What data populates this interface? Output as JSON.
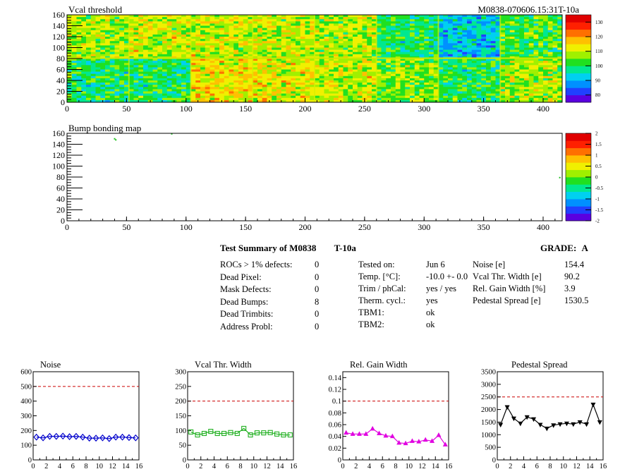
{
  "page": {
    "map1_title": "Vcal threshold",
    "map1_id": "M0838-070606.15:31T-10a",
    "map2_title": "Bump bonding map"
  },
  "summary": {
    "title": "Test Summary of M0838",
    "tag": "T-10a",
    "grade_label": "GRADE:",
    "grade_value": "A",
    "defects": [
      {
        "label": "ROCs > 1% defects:",
        "value": "0"
      },
      {
        "label": "Dead Pixel:",
        "value": "0"
      },
      {
        "label": "Mask Defects:",
        "value": "0"
      },
      {
        "label": "Dead Bumps:",
        "value": "8"
      },
      {
        "label": "Dead Trimbits:",
        "value": "0"
      },
      {
        "label": "Address Probl:",
        "value": "0"
      }
    ],
    "conditions": [
      {
        "label": "Tested on:",
        "value": "Jun 6"
      },
      {
        "label": "Temp. [°C]:",
        "value": "-10.0 +- 0.0"
      },
      {
        "label": "Trim / phCal:",
        "value": "yes / yes"
      },
      {
        "label": "Therm. cycl.:",
        "value": "yes"
      },
      {
        "label": "TBM1:",
        "value": "ok"
      },
      {
        "label": "TBM2:",
        "value": "ok"
      }
    ],
    "stats": [
      {
        "label": "Noise [e]",
        "value": "154.4"
      },
      {
        "label": "Vcal Thr. Width [e]",
        "value": "90.2"
      },
      {
        "label": "Rel. Gain Width [%]",
        "value": "3.9"
      },
      {
        "label": "Pedestal Spread [e]",
        "value": "1530.5"
      }
    ]
  },
  "chart_data": [
    {
      "type": "heatmap",
      "title": "Vcal threshold",
      "xlim": [
        0,
        416
      ],
      "ylim": [
        0,
        160
      ],
      "xticks": [
        0,
        50,
        100,
        150,
        200,
        250,
        300,
        350,
        400
      ],
      "yticks": [
        0,
        20,
        40,
        60,
        80,
        100,
        120,
        140,
        160
      ],
      "zlim": [
        75,
        135
      ],
      "zticks": [
        80,
        90,
        100,
        110,
        120,
        130
      ],
      "roc_cols": 8,
      "roc_rows": 2,
      "roc_means": {
        "top": [
          108,
          110,
          110,
          110,
          108,
          100,
          92,
          103
        ],
        "bottom": [
          100,
          100,
          114,
          112,
          110,
          106,
          100,
          108
        ]
      },
      "colors": [
        "#5a00e0",
        "#2040ff",
        "#0090ff",
        "#00d0f0",
        "#00e890",
        "#20e020",
        "#a0f000",
        "#f0f000",
        "#ffc000",
        "#ff7000",
        "#ff2000",
        "#e00000"
      ]
    },
    {
      "type": "heatmap",
      "title": "Bump bonding map",
      "xlim": [
        0,
        416
      ],
      "ylim": [
        0,
        160
      ],
      "xticks": [
        0,
        50,
        100,
        150,
        200,
        250,
        300,
        350,
        400
      ],
      "yticks": [
        0,
        20,
        40,
        60,
        80,
        100,
        120,
        140,
        160
      ],
      "zlim": [
        -2,
        2
      ],
      "zticks": [
        -2,
        -1.5,
        -1,
        -0.5,
        0,
        0.5,
        1,
        1.5,
        2
      ],
      "points": [
        [
          40,
          150
        ],
        [
          41,
          148
        ],
        [
          88,
          159
        ],
        [
          414,
          79
        ]
      ],
      "colors": [
        "#5a00e0",
        "#2040ff",
        "#0090ff",
        "#00d0f0",
        "#00e890",
        "#20e020",
        "#a0f000",
        "#f0f000",
        "#ffc000",
        "#ff7000",
        "#ff2000",
        "#e00000"
      ]
    },
    {
      "type": "line",
      "title": "Noise",
      "x": [
        0,
        1,
        2,
        3,
        4,
        5,
        6,
        7,
        8,
        9,
        10,
        11,
        12,
        13,
        14,
        15
      ],
      "values": [
        155,
        150,
        160,
        160,
        162,
        158,
        160,
        155,
        148,
        148,
        150,
        145,
        155,
        155,
        152,
        150
      ],
      "xlim": [
        0,
        16
      ],
      "ylim": [
        0,
        600
      ],
      "xticks": [
        0,
        2,
        4,
        6,
        8,
        10,
        12,
        14,
        16
      ],
      "yticks": [
        0,
        100,
        200,
        300,
        400,
        500,
        600
      ],
      "limit": 500,
      "color": "#0000cc"
    },
    {
      "type": "line",
      "title": "Vcal Thr. Width",
      "x": [
        0,
        1,
        2,
        3,
        4,
        5,
        6,
        7,
        8,
        9,
        10,
        11,
        12,
        13,
        14,
        15
      ],
      "values": [
        95,
        85,
        90,
        97,
        90,
        90,
        93,
        90,
        107,
        85,
        92,
        92,
        93,
        88,
        85,
        85
      ],
      "xlim": [
        0,
        16
      ],
      "ylim": [
        0,
        300
      ],
      "xticks": [
        0,
        2,
        4,
        6,
        8,
        10,
        12,
        14,
        16
      ],
      "yticks": [
        0,
        50,
        100,
        150,
        200,
        250,
        300
      ],
      "limit": 200,
      "color": "#20b020"
    },
    {
      "type": "line",
      "title": "Rel. Gain Width",
      "x": [
        0,
        1,
        2,
        3,
        4,
        5,
        6,
        7,
        8,
        9,
        10,
        11,
        12,
        13,
        14,
        15
      ],
      "values": [
        0.046,
        0.044,
        0.044,
        0.044,
        0.053,
        0.045,
        0.041,
        0.04,
        0.029,
        0.028,
        0.032,
        0.031,
        0.034,
        0.032,
        0.042,
        0.026
      ],
      "xlim": [
        0,
        16
      ],
      "ylim": [
        0,
        0.15
      ],
      "xticks": [
        0,
        2,
        4,
        6,
        8,
        10,
        12,
        14,
        16
      ],
      "yticks": [
        0,
        0.02,
        0.04,
        0.06,
        0.08,
        0.1,
        0.12,
        0.14
      ],
      "limit": 0.1,
      "color": "#e000e0"
    },
    {
      "type": "line",
      "title": "Pedestal Spread",
      "x": [
        0,
        1,
        2,
        3,
        4,
        5,
        6,
        7,
        8,
        9,
        10,
        11,
        12,
        13,
        14,
        15
      ],
      "values": [
        1400,
        2100,
        1650,
        1450,
        1700,
        1620,
        1400,
        1250,
        1380,
        1420,
        1450,
        1420,
        1500,
        1420,
        2200,
        1500
      ],
      "xlim": [
        0,
        16
      ],
      "ylim": [
        0,
        3500
      ],
      "xticks": [
        0,
        2,
        4,
        6,
        8,
        10,
        12,
        14,
        16
      ],
      "yticks": [
        0,
        500,
        1000,
        1500,
        2000,
        2500,
        3000,
        3500
      ],
      "limit": 2500,
      "color": "#000000"
    }
  ]
}
